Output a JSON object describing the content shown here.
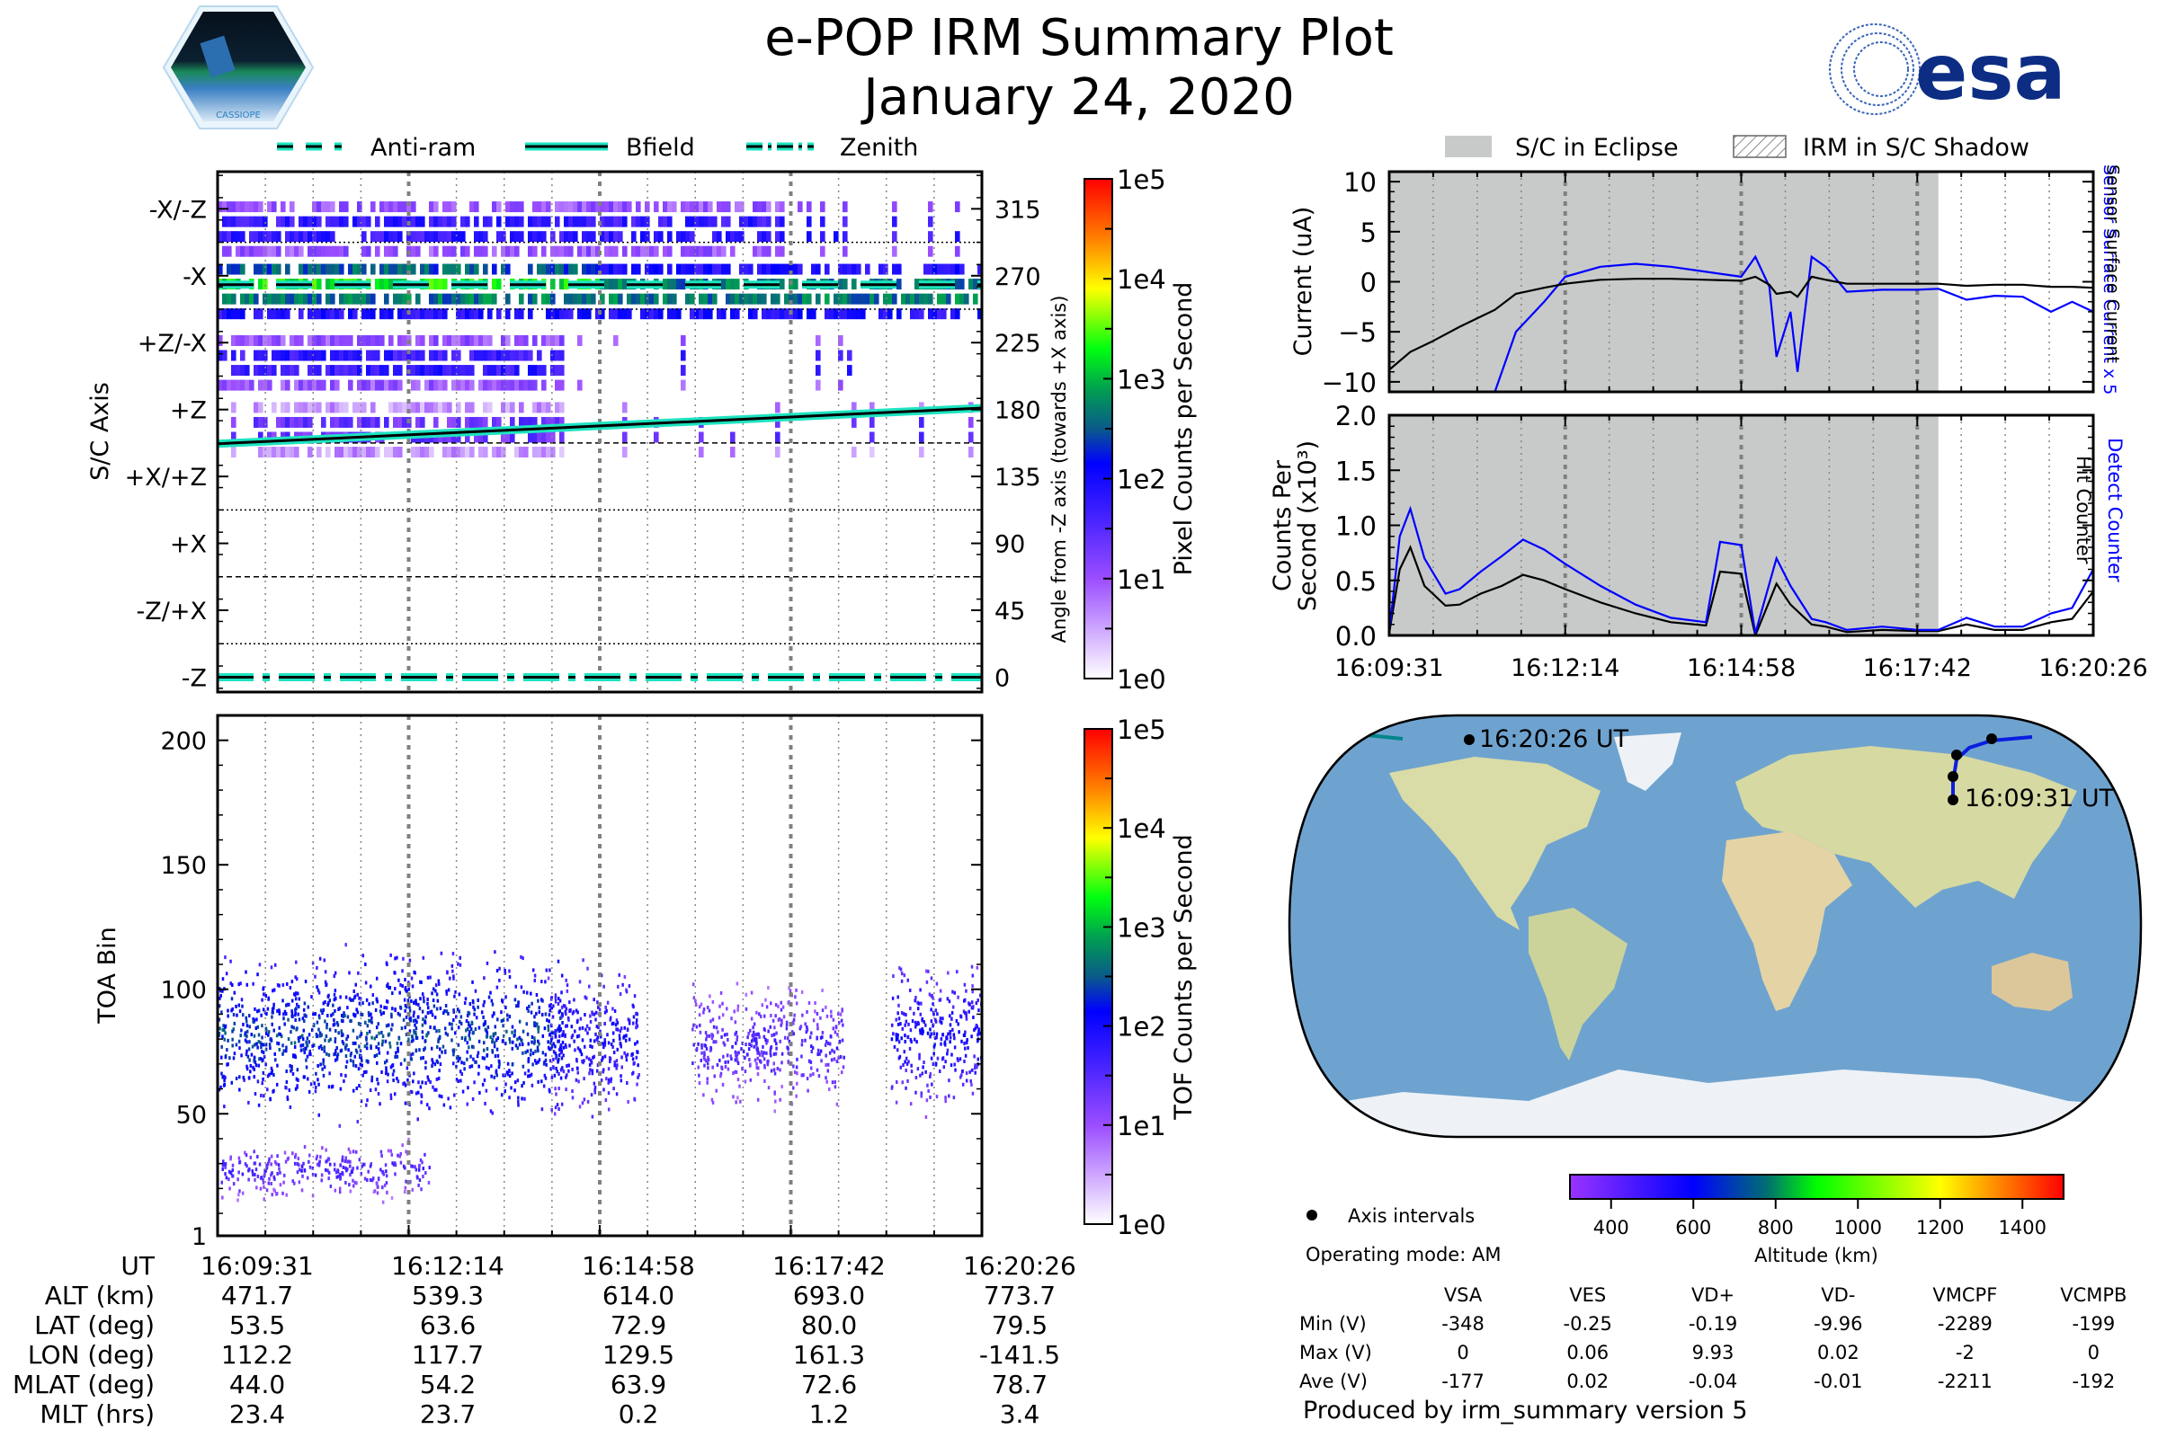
{
  "header": {
    "title": "e-POP IRM Summary Plot",
    "date": "January 24, 2020",
    "left_logo": "cassiope-mission-logo",
    "left_logo_text": "CASSIOPE",
    "right_logo": "esa-logo",
    "right_logo_text": "esa"
  },
  "colors": {
    "cyan_line": "#1de3c0",
    "eclipse_gray": "#c8cac9",
    "blue_series": "#0000ff",
    "black_series": "#000000",
    "esa_blue": "#003399"
  },
  "chart_data": [
    {
      "id": "pixel-angle-spectrogram",
      "type": "heatmap",
      "legend": [
        {
          "label": "Anti-ram",
          "style": "dashed"
        },
        {
          "label": "Bfield",
          "style": "solid"
        },
        {
          "label": "Zenith",
          "style": "dashdot"
        }
      ],
      "ylabel": "S/C Axis",
      "ylabel_right": "Angle from -Z axis (towards +X axis)",
      "y_ticks_left": [
        "-X/-Z",
        "-X",
        "+Z/-X",
        "+Z",
        "+X/+Z",
        "+X",
        "-Z/+X",
        "-Z"
      ],
      "y_ticks_right": [
        "315",
        "270",
        "225",
        "180",
        "135",
        "90",
        "45",
        "0"
      ],
      "ylim": [
        -10,
        340
      ],
      "x_ticks": [
        "16:09:31",
        "16:12:14",
        "16:14:58",
        "16:17:42",
        "16:20:26"
      ],
      "colorbar": {
        "label": "Pixel Counts per Second",
        "ticks": [
          "1e0",
          "1e1",
          "1e2",
          "1e3",
          "1e4",
          "1e5"
        ],
        "scale": "log",
        "range": [
          1,
          100000
        ]
      },
      "lines": {
        "anti_ram_deg": 264,
        "zenith_deg": 0,
        "bfield_deg": {
          "start": 157,
          "end": 181
        }
      },
      "bands": [
        {
          "center_deg": 300,
          "intensity": "1e1",
          "extent": [
            0,
            0.72
          ]
        },
        {
          "center_deg": 258,
          "intensity": "1e2-1e3",
          "extent": [
            0,
            1.0
          ]
        },
        {
          "center_deg": 210,
          "intensity": "1e1",
          "extent": [
            0,
            0.45
          ]
        },
        {
          "center_deg": 165,
          "intensity": "3e0",
          "extent": [
            0.05,
            0.45
          ]
        }
      ]
    },
    {
      "id": "toa-spectrogram",
      "type": "heatmap",
      "ylabel": "TOA Bin",
      "y_ticks": [
        "1",
        "50",
        "100",
        "150",
        "200"
      ],
      "ylim": [
        1,
        210
      ],
      "x_ticks": [
        "16:09:31",
        "16:12:14",
        "16:14:58",
        "16:17:42",
        "16:20:26"
      ],
      "colorbar": {
        "label": "TOF Counts per Second",
        "ticks": [
          "1e0",
          "1e1",
          "1e2",
          "1e3",
          "1e4",
          "1e5"
        ],
        "scale": "log",
        "range": [
          1,
          100000
        ]
      },
      "populations": [
        {
          "toa_center": 82,
          "toa_spread": 14,
          "t_range": [
            0,
            0.45
          ],
          "intensity": "1e1-1e2"
        },
        {
          "toa_center": 28,
          "toa_spread": 5,
          "t_range": [
            0,
            0.28
          ],
          "intensity": "3e0"
        },
        {
          "toa_center": 80,
          "toa_spread": 13,
          "t_range": [
            0.43,
            0.55
          ],
          "intensity": "1e1"
        },
        {
          "toa_center": 78,
          "toa_spread": 10,
          "t_range": [
            0.62,
            0.82
          ],
          "intensity": "3e0"
        },
        {
          "toa_center": 82,
          "toa_spread": 12,
          "t_range": [
            0.88,
            1.0
          ],
          "intensity": "1e1"
        }
      ]
    },
    {
      "id": "current-plot",
      "type": "line",
      "ylabel": "Current (uA)",
      "right_labels": [
        "Sensor Surface Current x 5",
        "Sensor Surface Current"
      ],
      "legend": [
        {
          "label": "S/C in Eclipse",
          "swatch": "gray-fill"
        },
        {
          "label": "IRM in S/C Shadow",
          "swatch": "hatched"
        }
      ],
      "ylim": [
        -11,
        11
      ],
      "y_ticks": [
        "10",
        "5",
        "0",
        "−5",
        "−10"
      ],
      "eclipse_end_fraction": 0.78,
      "x": [
        0,
        0.03,
        0.06,
        0.1,
        0.15,
        0.18,
        0.22,
        0.25,
        0.3,
        0.35,
        0.4,
        0.45,
        0.5,
        0.52,
        0.54,
        0.55,
        0.57,
        0.58,
        0.6,
        0.62,
        0.65,
        0.7,
        0.75,
        0.78,
        0.82,
        0.86,
        0.9,
        0.94,
        0.97,
        1.0
      ],
      "series": [
        {
          "name": "Sensor Surface Current",
          "color": "#000000",
          "values": [
            -8.8,
            -7,
            -6,
            -4.5,
            -2.8,
            -1.2,
            -0.6,
            -0.2,
            0.2,
            0.3,
            0.3,
            0.2,
            0.1,
            0.5,
            -0.3,
            -1.2,
            -1.0,
            -1.5,
            0.5,
            0.2,
            -0.2,
            -0.2,
            -0.2,
            -0.2,
            -0.4,
            -0.3,
            -0.3,
            -0.5,
            -0.5,
            -0.6
          ]
        },
        {
          "name": "Sensor Surface Current x 5",
          "color": "#0000ff",
          "values": [
            null,
            null,
            null,
            null,
            -11,
            -5,
            -2,
            0.5,
            1.5,
            1.8,
            1.5,
            1.0,
            0.5,
            2.5,
            -0.5,
            -7.5,
            -3,
            -9,
            2.5,
            1.5,
            -1,
            -0.8,
            -0.8,
            -0.7,
            -1.8,
            -1.4,
            -1.5,
            -3,
            -2,
            -3
          ]
        }
      ]
    },
    {
      "id": "counts-plot",
      "type": "line",
      "ylabel": "Counts Per Second (x10^3)",
      "right_labels": [
        "Detect Counter",
        "Hit Counter"
      ],
      "ylim": [
        0,
        2.0
      ],
      "y_ticks": [
        "0.0",
        "0.5",
        "1.0",
        "1.5",
        "2.0"
      ],
      "x_ticks": [
        "16:09:31",
        "16:12:14",
        "16:14:58",
        "16:17:42",
        "16:20:26"
      ],
      "eclipse_end_fraction": 0.78,
      "x": [
        0,
        0.015,
        0.03,
        0.05,
        0.08,
        0.1,
        0.13,
        0.16,
        0.19,
        0.22,
        0.25,
        0.3,
        0.35,
        0.4,
        0.45,
        0.47,
        0.5,
        0.52,
        0.55,
        0.57,
        0.6,
        0.62,
        0.65,
        0.7,
        0.75,
        0.78,
        0.82,
        0.86,
        0.9,
        0.94,
        0.97,
        1.0
      ],
      "series": [
        {
          "name": "Detect Counter",
          "color": "#0000ff",
          "values": [
            0.02,
            0.9,
            1.15,
            0.7,
            0.38,
            0.42,
            0.58,
            0.72,
            0.87,
            0.78,
            0.65,
            0.45,
            0.28,
            0.16,
            0.12,
            0.85,
            0.82,
            0.02,
            0.7,
            0.45,
            0.15,
            0.12,
            0.05,
            0.08,
            0.05,
            0.05,
            0.16,
            0.08,
            0.08,
            0.2,
            0.25,
            0.6
          ]
        },
        {
          "name": "Hit Counter",
          "color": "#000000",
          "values": [
            0.02,
            0.6,
            0.8,
            0.45,
            0.27,
            0.28,
            0.38,
            0.45,
            0.55,
            0.5,
            0.42,
            0.3,
            0.2,
            0.12,
            0.09,
            0.58,
            0.56,
            0.0,
            0.47,
            0.28,
            0.1,
            0.08,
            0.03,
            0.05,
            0.04,
            0.04,
            0.1,
            0.05,
            0.05,
            0.12,
            0.15,
            0.4
          ]
        }
      ]
    },
    {
      "id": "orbit-map",
      "type": "scatter",
      "labels": {
        "start": "16:09:31 UT",
        "end": "16:20:26 UT"
      },
      "track_lonlat": [
        [
          112.2,
          53.5
        ],
        [
          117.7,
          63.6
        ],
        [
          129.5,
          72.9
        ],
        [
          161.3,
          80.0
        ],
        [
          -141.5,
          79.5
        ]
      ],
      "legend": [
        {
          "label": "Axis intervals",
          "marker": "black-dot"
        }
      ],
      "colorbar": {
        "label": "Altitude (km)",
        "ticks": [
          "400",
          "600",
          "800",
          "1000",
          "1200",
          "1400"
        ],
        "range": [
          300,
          1500
        ]
      }
    }
  ],
  "orbit_table": {
    "row_labels": [
      "UT",
      "ALT (km)",
      "LAT (deg)",
      "LON (deg)",
      "MLAT (deg)",
      "MLT (hrs)"
    ],
    "columns": [
      [
        "16:09:31",
        "471.7",
        "53.5",
        "112.2",
        "44.0",
        "23.4"
      ],
      [
        "16:12:14",
        "539.3",
        "63.6",
        "117.7",
        "54.2",
        "23.7"
      ],
      [
        "16:14:58",
        "614.0",
        "72.9",
        "129.5",
        "63.9",
        "0.2"
      ],
      [
        "16:17:42",
        "693.0",
        "80.0",
        "161.3",
        "72.6",
        "1.2"
      ],
      [
        "16:20:26",
        "773.7",
        "79.5",
        "-141.5",
        "78.7",
        "3.4"
      ]
    ]
  },
  "voltage_table": {
    "operating_mode": "Operating mode: AM",
    "headers": [
      "VSA",
      "VES",
      "VD+",
      "VD-",
      "VMCPF",
      "VCMPB"
    ],
    "rows": [
      {
        "label": "Min (V)",
        "values": [
          "-348",
          "-0.25",
          "-0.19",
          "-9.96",
          "-2289",
          "-199"
        ]
      },
      {
        "label": "Max (V)",
        "values": [
          "0",
          "0.06",
          "9.93",
          "0.02",
          "-2",
          "0"
        ]
      },
      {
        "label": "Ave (V)",
        "values": [
          "-177",
          "0.02",
          "-0.04",
          "-0.01",
          "-2211",
          "-192"
        ]
      }
    ]
  },
  "footer": "Produced by irm_summary version 5"
}
